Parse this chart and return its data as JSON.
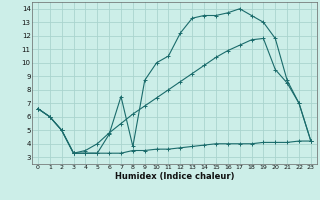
{
  "xlabel": "Humidex (Indice chaleur)",
  "bg_color": "#cceee8",
  "grid_color": "#aad4ce",
  "line_color": "#1a6b6b",
  "xlim": [
    -0.5,
    23.5
  ],
  "ylim": [
    2.5,
    14.5
  ],
  "xticks": [
    0,
    1,
    2,
    3,
    4,
    5,
    6,
    7,
    8,
    9,
    10,
    11,
    12,
    13,
    14,
    15,
    16,
    17,
    18,
    19,
    20,
    21,
    22,
    23
  ],
  "yticks": [
    3,
    4,
    5,
    6,
    7,
    8,
    9,
    10,
    11,
    12,
    13,
    14
  ],
  "series_min_x": [
    0,
    1,
    2,
    3,
    4,
    5,
    6,
    7,
    8,
    9,
    10,
    11,
    12,
    13,
    14,
    15,
    16,
    17,
    18,
    19,
    20,
    21,
    22,
    23
  ],
  "series_min_y": [
    6.6,
    6.0,
    5.0,
    3.3,
    3.3,
    3.3,
    3.3,
    3.3,
    3.5,
    3.5,
    3.6,
    3.6,
    3.7,
    3.8,
    3.9,
    4.0,
    4.0,
    4.0,
    4.0,
    4.1,
    4.1,
    4.1,
    4.2,
    4.2
  ],
  "series_max_x": [
    0,
    1,
    2,
    3,
    4,
    5,
    6,
    7,
    8,
    9,
    10,
    11,
    12,
    13,
    14,
    15,
    16,
    17,
    18,
    19,
    20,
    21,
    22,
    23
  ],
  "series_max_y": [
    6.6,
    6.0,
    5.0,
    3.3,
    3.3,
    3.3,
    4.7,
    7.5,
    3.8,
    8.7,
    10.0,
    10.5,
    12.2,
    13.3,
    13.5,
    13.5,
    13.7,
    14.0,
    13.5,
    13.0,
    11.8,
    8.7,
    7.0,
    4.2
  ],
  "series_avg_x": [
    0,
    1,
    2,
    3,
    4,
    5,
    6,
    7,
    8,
    9,
    10,
    11,
    12,
    13,
    14,
    15,
    16,
    17,
    18,
    19,
    20,
    21,
    22,
    23
  ],
  "series_avg_y": [
    6.6,
    6.0,
    5.0,
    3.3,
    3.5,
    4.0,
    4.8,
    5.5,
    6.2,
    6.8,
    7.4,
    8.0,
    8.6,
    9.2,
    9.8,
    10.4,
    10.9,
    11.3,
    11.7,
    11.8,
    9.5,
    8.5,
    7.0,
    4.2
  ]
}
